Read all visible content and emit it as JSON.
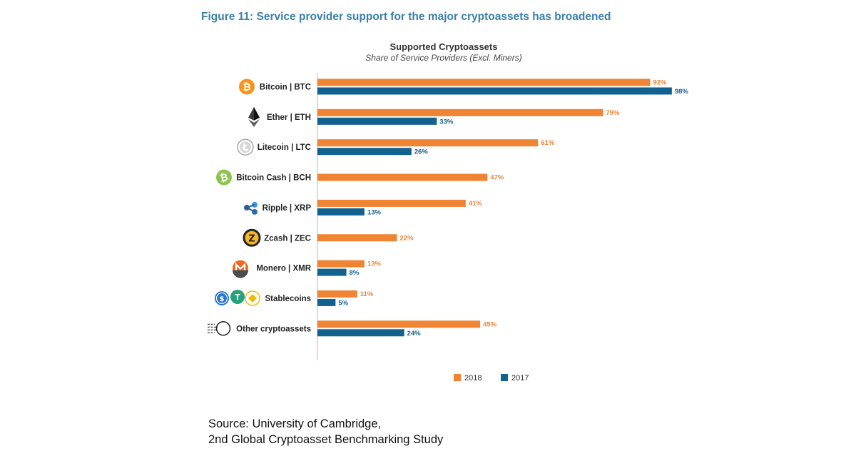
{
  "figure_title": "Figure 11: Service provider support for the major cryptoassets has broadened",
  "source": {
    "line1": "Source: University of Cambridge,",
    "line2": "2nd Global Cryptoasset Benchmarking Study"
  },
  "colors": {
    "s2018": "#ee8434",
    "s2017": "#12628f"
  },
  "chart_data": {
    "type": "bar",
    "orientation": "horizontal",
    "title": "Supported Cryptoassets",
    "subtitle": "Share of Service Providers (Excl. Miners)",
    "xlim": [
      0,
      100
    ],
    "categories": [
      {
        "label": "Bitcoin | BTC",
        "icon": "bitcoin-icon"
      },
      {
        "label": "Ether | ETH",
        "icon": "ether-icon"
      },
      {
        "label": "Litecoin | LTC",
        "icon": "litecoin-icon"
      },
      {
        "label": "Bitcoin Cash |  BCH",
        "icon": "bitcoin-cash-icon"
      },
      {
        "label": "Ripple | XRP",
        "icon": "ripple-icon"
      },
      {
        "label": "Zcash | ZEC",
        "icon": "zcash-icon"
      },
      {
        "label": "Monero | XMR",
        "icon": "monero-icon"
      },
      {
        "label": "Stablecoins",
        "icon": "stablecoins-icon"
      },
      {
        "label": "Other cryptoassets",
        "icon": "other-cryptoassets-icon"
      }
    ],
    "series": [
      {
        "name": "2018",
        "values": [
          92,
          79,
          61,
          47,
          41,
          22,
          13,
          11,
          45
        ],
        "labels": [
          "92%",
          "79%",
          "61%",
          "47%",
          "41%",
          "22%",
          "13%",
          "11%",
          "45%"
        ]
      },
      {
        "name": "2017",
        "values": [
          98,
          33,
          26,
          null,
          13,
          null,
          8,
          5,
          24
        ],
        "labels": [
          "98%",
          "33%",
          "26%",
          null,
          "13%",
          null,
          "8%",
          "5%",
          "24%"
        ]
      }
    ],
    "legend": [
      "2018",
      "2017"
    ]
  }
}
